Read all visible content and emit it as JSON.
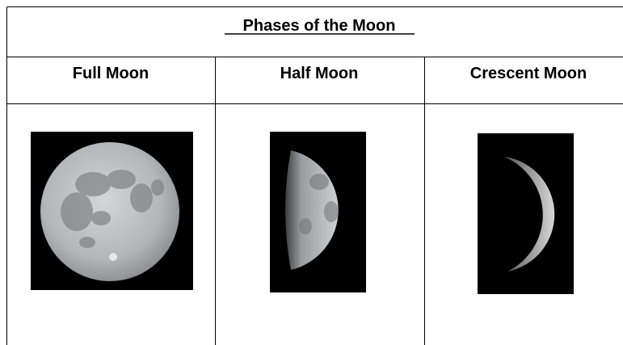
{
  "table": {
    "title": "Phases of the Moon",
    "headers": [
      "Full Moon",
      "Half Moon",
      "Crescent Moon"
    ]
  }
}
